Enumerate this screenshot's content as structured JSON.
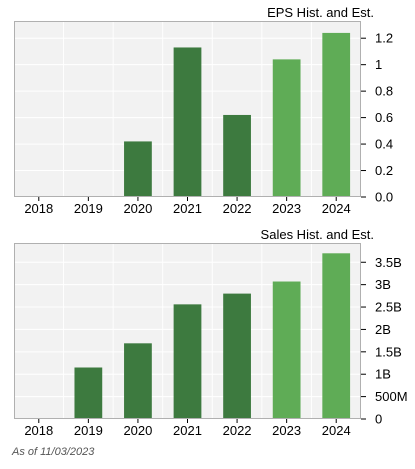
{
  "chart_data": [
    {
      "type": "bar",
      "title": "EPS Hist. and Est.",
      "categories": [
        "2018",
        "2019",
        "2020",
        "2021",
        "2022",
        "2023",
        "2024"
      ],
      "series": [
        {
          "values": [
            null,
            null,
            0.42,
            1.13,
            0.62,
            null,
            null
          ]
        },
        {
          "values": [
            null,
            null,
            null,
            null,
            null,
            1.04,
            1.24
          ]
        }
      ],
      "yticks": [
        0.0,
        0.2,
        0.4,
        0.6,
        0.8,
        1,
        1.2
      ],
      "ytick_labels": [
        "0.0",
        "0.2",
        "0.4",
        "0.6",
        "0.8",
        "1",
        "1.2"
      ],
      "ylim": [
        0,
        1.33
      ],
      "grid": true,
      "xlabel": "",
      "ylabel": ""
    },
    {
      "type": "bar",
      "title": "Sales Hist. and Est.",
      "categories": [
        "2018",
        "2019",
        "2020",
        "2021",
        "2022",
        "2023",
        "2024"
      ],
      "series": [
        {
          "values": [
            null,
            1150000000,
            1690000000,
            2560000000,
            2800000000,
            null,
            null
          ]
        },
        {
          "values": [
            null,
            null,
            null,
            null,
            null,
            3070000000,
            3700000000
          ]
        }
      ],
      "yticks": [
        0,
        500000000,
        1000000000,
        1500000000,
        2000000000,
        2500000000,
        3000000000,
        3500000000
      ],
      "ytick_labels": [
        "0",
        "500M",
        "1B",
        "1.5B",
        "2B",
        "2.5B",
        "3B",
        "3.5B"
      ],
      "ylim": [
        0,
        3930000000
      ],
      "grid": true,
      "xlabel": "",
      "ylabel": ""
    }
  ],
  "colors": {
    "historical": "#3d7a3f",
    "estimate": "#5fac56",
    "plot_background": "#f2f2f2",
    "grid": "#ffffff",
    "frame": "#b0b0b0"
  },
  "footnote": "As of 11/03/2023"
}
